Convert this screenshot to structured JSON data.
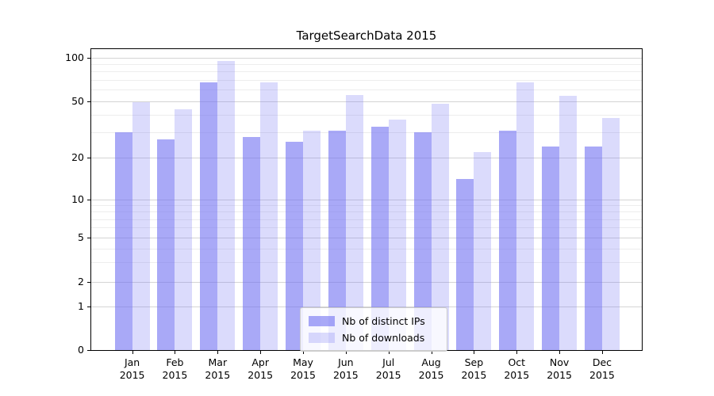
{
  "title": "TargetSearchData 2015",
  "chart_data": {
    "type": "bar",
    "title": "TargetSearchData 2015",
    "categories": [
      "Jan 2015",
      "Feb 2015",
      "Mar 2015",
      "Apr 2015",
      "May 2015",
      "Jun 2015",
      "Jul 2015",
      "Aug 2015",
      "Sep 2015",
      "Oct 2015",
      "Nov 2015",
      "Dec 2015"
    ],
    "series": [
      {
        "name": "Nb of distinct IPs",
        "color": "#a9a9f8",
        "values": [
          30,
          27,
          67,
          28,
          26,
          31,
          33,
          30,
          14,
          31,
          24,
          24
        ]
      },
      {
        "name": "Nb of downloads",
        "color": "#dbdbfa",
        "values": [
          49,
          44,
          95,
          67,
          31,
          55,
          37,
          48,
          22,
          67,
          54,
          38
        ]
      }
    ],
    "xlabel": "",
    "ylabel": "",
    "yscale": "symlog",
    "ylim": [
      0,
      117
    ],
    "yticks": [
      0,
      1,
      2,
      5,
      10,
      20,
      50,
      100
    ],
    "minor_gridlines": [
      3,
      4,
      6,
      7,
      8,
      9,
      30,
      40,
      60,
      70,
      80,
      90
    ],
    "grid": true,
    "legend_position": "lower center"
  },
  "legend": {
    "items": [
      {
        "label": "Nb of distinct IPs"
      },
      {
        "label": "Nb of downloads"
      }
    ]
  },
  "colors": {
    "bar_distinct_ips": "#a9a9f8",
    "bar_downloads": "#dbdbfa",
    "grid_major": "#d4d4d4",
    "grid_minor": "#ededed",
    "spine": "#000000",
    "background": "#ffffff"
  }
}
